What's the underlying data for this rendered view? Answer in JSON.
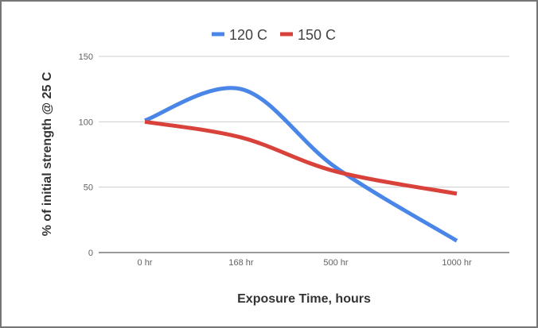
{
  "chart_data": {
    "type": "line",
    "smooth": true,
    "categories": [
      "0 hr",
      "168 hr",
      "500 hr",
      "1000 hr"
    ],
    "series": [
      {
        "name": "120 C",
        "values": [
          101,
          125,
          65,
          9
        ],
        "color": "#4A86E8"
      },
      {
        "name": "150 C",
        "values": [
          100,
          88,
          62,
          45
        ],
        "color": "#D9423A"
      }
    ],
    "xlabel": "Exposure Time, hours",
    "ylabel": "% of initial strength @ 25 C",
    "ylim": [
      0,
      150
    ],
    "yticks": [
      0,
      50,
      100,
      150
    ],
    "grid": true,
    "legend_position": "top-center"
  }
}
